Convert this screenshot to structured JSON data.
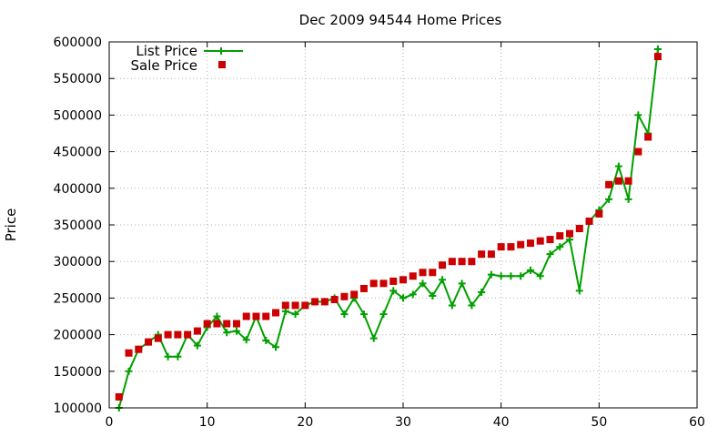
{
  "chart_data": {
    "type": "line",
    "title": "Dec 2009 94544 Home Prices",
    "xlabel": "",
    "ylabel": "Price",
    "xlim": [
      0,
      60
    ],
    "ylim": [
      100000,
      600000
    ],
    "x_ticks": [
      0,
      10,
      20,
      30,
      40,
      50,
      60
    ],
    "y_ticks": [
      100000,
      150000,
      200000,
      250000,
      300000,
      350000,
      400000,
      450000,
      500000,
      550000,
      600000
    ],
    "grid": true,
    "legend_position": "top-left",
    "series": [
      {
        "name": "List Price",
        "style": "line-with-plus-markers",
        "color": "#00a000",
        "x": [
          1,
          2,
          3,
          4,
          5,
          6,
          7,
          8,
          9,
          10,
          11,
          12,
          13,
          14,
          15,
          16,
          17,
          18,
          19,
          20,
          21,
          22,
          23,
          24,
          25,
          26,
          27,
          28,
          29,
          30,
          31,
          32,
          33,
          34,
          35,
          36,
          37,
          38,
          39,
          40,
          41,
          42,
          43,
          44,
          45,
          46,
          47,
          48,
          49,
          50,
          51,
          52,
          53,
          54,
          55,
          56
        ],
        "values": [
          100000,
          150000,
          180000,
          190000,
          200000,
          170000,
          170000,
          200000,
          185000,
          210000,
          225000,
          203000,
          205000,
          193000,
          225000,
          192000,
          183000,
          232000,
          228000,
          240000,
          245000,
          245000,
          250000,
          228000,
          250000,
          228000,
          195000,
          228000,
          260000,
          250000,
          255000,
          270000,
          253000,
          275000,
          240000,
          270000,
          240000,
          258000,
          282000,
          280000,
          280000,
          280000,
          288000,
          280000,
          310000,
          320000,
          330000,
          260000,
          355000,
          370000,
          385000,
          430000,
          385000,
          500000,
          475000,
          590000
        ]
      },
      {
        "name": "Sale Price",
        "style": "square-markers",
        "color": "#cc0000",
        "x": [
          1,
          2,
          3,
          4,
          5,
          6,
          7,
          8,
          9,
          10,
          11,
          12,
          13,
          14,
          15,
          16,
          17,
          18,
          19,
          20,
          21,
          22,
          23,
          24,
          25,
          26,
          27,
          28,
          29,
          30,
          31,
          32,
          33,
          34,
          35,
          36,
          37,
          38,
          39,
          40,
          41,
          42,
          43,
          44,
          45,
          46,
          47,
          48,
          49,
          50,
          51,
          52,
          53,
          54,
          55,
          56
        ],
        "values": [
          115000,
          175000,
          180000,
          190000,
          195000,
          200000,
          200000,
          200000,
          205000,
          215000,
          215000,
          215000,
          215000,
          225000,
          225000,
          225000,
          230000,
          240000,
          240000,
          240000,
          245000,
          245000,
          248000,
          252000,
          255000,
          263000,
          270000,
          270000,
          273000,
          275000,
          280000,
          285000,
          285000,
          295000,
          300000,
          300000,
          300000,
          310000,
          310000,
          320000,
          320000,
          323000,
          325000,
          328000,
          330000,
          335000,
          338000,
          345000,
          355000,
          365000,
          405000,
          410000,
          410000,
          450000,
          470000,
          580000
        ]
      }
    ]
  }
}
